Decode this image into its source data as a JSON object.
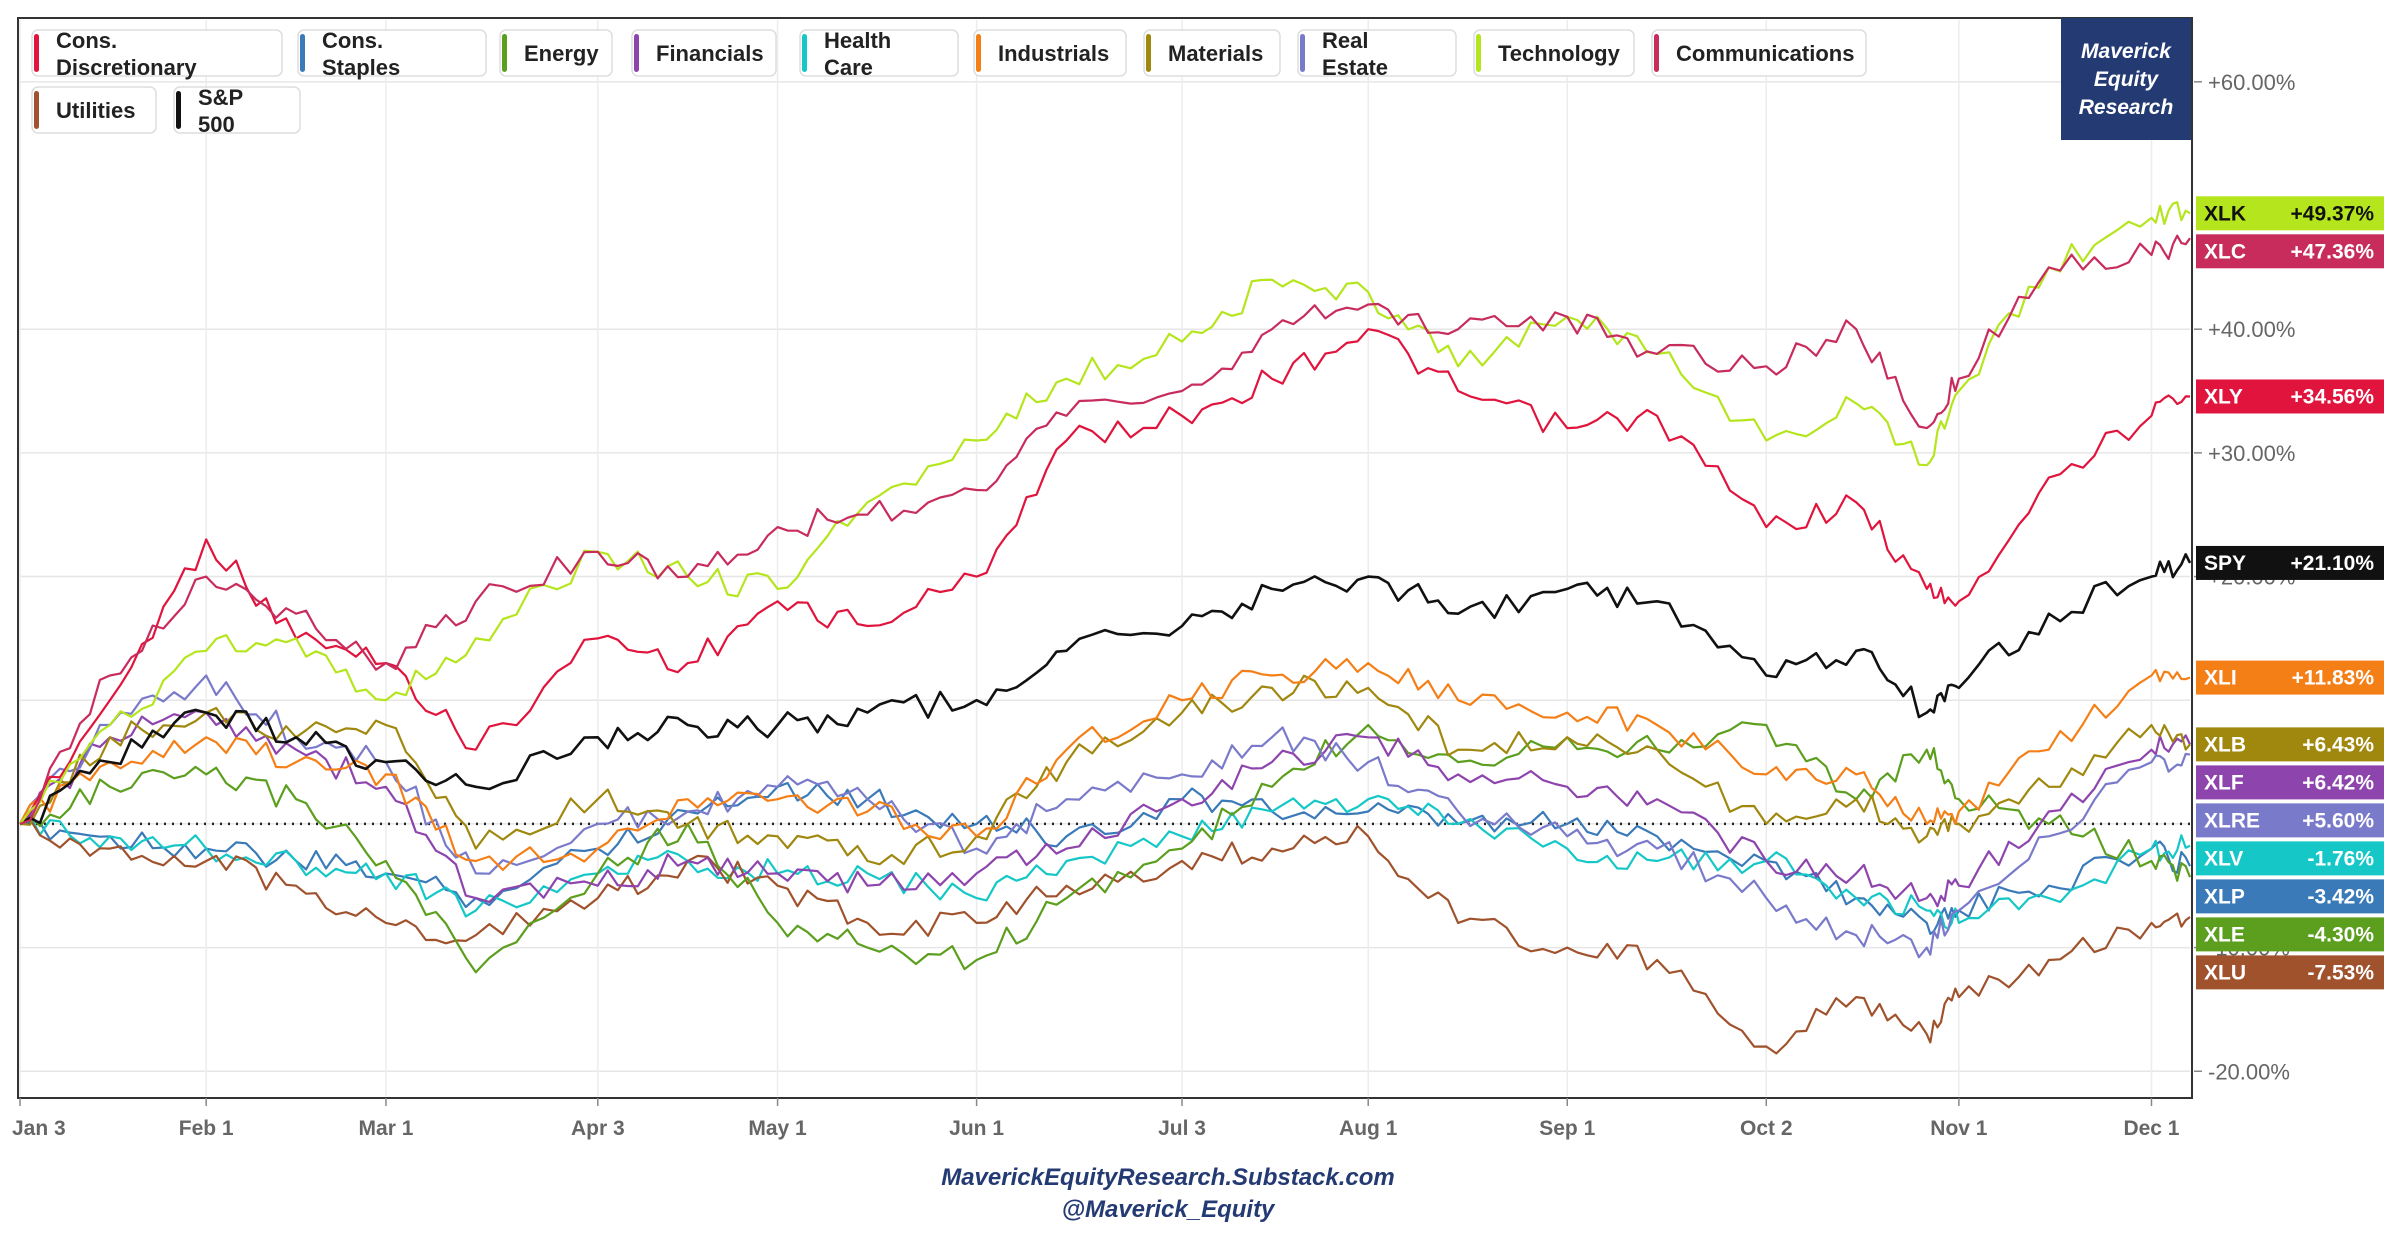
{
  "chart_data": {
    "type": "line",
    "y_unit": "%",
    "ylim": [
      -22,
      65
    ],
    "y_ticks": [
      {
        "value": 60,
        "label": "+60.00%"
      },
      {
        "value": 40,
        "label": "+40.00%"
      },
      {
        "value": 30,
        "label": "+30.00%"
      },
      {
        "value": 20,
        "label": "+20.00%"
      },
      {
        "value": -10,
        "label": "-10.00%"
      },
      {
        "value": -20,
        "label": "-20.00%"
      }
    ],
    "x_ticks": [
      {
        "date": "2023-01-03",
        "label": "Jan 3"
      },
      {
        "date": "2023-02-01",
        "label": "Feb 1"
      },
      {
        "date": "2023-03-01",
        "label": "Mar 1"
      },
      {
        "date": "2023-04-03",
        "label": "Apr 3"
      },
      {
        "date": "2023-05-01",
        "label": "May 1"
      },
      {
        "date": "2023-06-01",
        "label": "Jun 1"
      },
      {
        "date": "2023-07-03",
        "label": "Jul 3"
      },
      {
        "date": "2023-08-01",
        "label": "Aug 1"
      },
      {
        "date": "2023-09-01",
        "label": "Sep 1"
      },
      {
        "date": "2023-10-02",
        "label": "Oct 2"
      },
      {
        "date": "2023-11-01",
        "label": "Nov 1"
      },
      {
        "date": "2023-12-01",
        "label": "Dec 1"
      }
    ],
    "x_range": [
      "2023-01-03",
      "2023-12-07"
    ],
    "grid": true,
    "zero_line": "dotted",
    "legend_position": "top-left",
    "x": [
      "2023-01-03",
      "2023-01-17",
      "2023-02-01",
      "2023-02-15",
      "2023-03-01",
      "2023-03-15",
      "2023-04-03",
      "2023-04-17",
      "2023-05-01",
      "2023-05-15",
      "2023-06-01",
      "2023-06-15",
      "2023-07-03",
      "2023-07-17",
      "2023-08-01",
      "2023-08-15",
      "2023-09-01",
      "2023-09-15",
      "2023-10-02",
      "2023-10-16",
      "2023-10-27",
      "2023-11-01",
      "2023-11-15",
      "2023-12-01",
      "2023-12-07"
    ],
    "series": [
      {
        "name": "Cons. Discretionary",
        "ticker": "XLY",
        "end_label": "+34.56%",
        "color": "#e0143c",
        "values": [
          0,
          10,
          23,
          15,
          13,
          6,
          15,
          13,
          18,
          16,
          20,
          31,
          33,
          36,
          40,
          35,
          32,
          33,
          24,
          26,
          19,
          18,
          28,
          33,
          34.56
        ]
      },
      {
        "name": "Cons. Staples",
        "ticker": "XLP",
        "end_label": "-3.42%",
        "color": "#3a7ab8",
        "values": [
          0,
          -1,
          -2,
          -3,
          -4,
          -6,
          -2,
          1,
          3,
          2,
          0,
          -1,
          2,
          1,
          1,
          0,
          0,
          -1,
          -3,
          -6,
          -8,
          -7,
          -5,
          -2,
          -3.42
        ]
      },
      {
        "name": "Energy",
        "ticker": "XLE",
        "end_label": "-4.30%",
        "color": "#5c9e1e",
        "values": [
          0,
          3,
          4,
          2,
          -3,
          -12,
          -4,
          0,
          -8,
          -10,
          -11,
          -6,
          -2,
          3,
          8,
          5,
          7,
          6,
          8,
          2,
          6,
          2,
          0,
          -3,
          -4.3
        ]
      },
      {
        "name": "Financials",
        "ticker": "XLF",
        "end_label": "+6.42%",
        "color": "#8e44ad",
        "values": [
          0,
          7,
          9,
          6,
          3,
          -6,
          -5,
          -3,
          -4,
          -5,
          -4,
          -2,
          2,
          5,
          7,
          4,
          3,
          2,
          -3,
          -4,
          -6,
          -5,
          1,
          6,
          6.42
        ]
      },
      {
        "name": "Health Care",
        "ticker": "XLV",
        "end_label": "-1.76%",
        "color": "#16c7c7",
        "values": [
          0,
          -1,
          -2,
          -3,
          -4,
          -7,
          -4,
          -3,
          -4,
          -4,
          -6,
          -3,
          -1,
          1,
          2,
          0,
          -2,
          -3,
          -3,
          -6,
          -7,
          -8,
          -6,
          -2,
          -1.76
        ]
      },
      {
        "name": "Industrials",
        "ticker": "XLI",
        "end_label": "+11.83%",
        "color": "#f57f17",
        "values": [
          0,
          5,
          7,
          5,
          4,
          -3,
          -2,
          2,
          2,
          1,
          -1,
          6,
          10,
          12,
          13,
          10,
          9,
          8,
          4,
          4,
          0,
          1,
          6,
          12,
          11.83
        ]
      },
      {
        "name": "Materials",
        "ticker": "XLB",
        "end_label": "+6.43%",
        "color": "#a0880f",
        "values": [
          0,
          7,
          9,
          7,
          8,
          -2,
          2,
          0,
          -1,
          -3,
          -1,
          5,
          9,
          11,
          11,
          6,
          7,
          6,
          0,
          2,
          -1,
          0,
          3,
          8,
          6.43
        ]
      },
      {
        "name": "Real Estate",
        "ticker": "XLRE",
        "end_label": "+5.60%",
        "color": "#7a7acb",
        "values": [
          0,
          8,
          12,
          7,
          5,
          -4,
          0,
          1,
          3,
          2,
          -2,
          2,
          4,
          7,
          5,
          1,
          -1,
          -2,
          -6,
          -9,
          -10,
          -7,
          -1,
          5,
          5.6
        ]
      },
      {
        "name": "Technology",
        "ticker": "XLK",
        "end_label": "+49.37%",
        "color": "#b5e51d",
        "values": [
          0,
          8,
          14,
          15,
          10,
          15,
          22,
          20,
          19,
          26,
          31,
          36,
          39,
          44,
          43,
          37,
          41,
          38,
          31,
          34,
          29,
          35,
          45,
          49,
          49.37
        ]
      },
      {
        "name": "Communications",
        "ticker": "XLC",
        "end_label": "+47.36%",
        "color": "#c72c5c",
        "values": [
          0,
          12,
          20,
          17,
          13,
          18,
          22,
          20,
          24,
          25,
          27,
          33,
          35,
          40,
          42,
          40,
          41,
          38,
          37,
          40,
          32,
          36,
          45,
          46,
          47.36
        ]
      },
      {
        "name": "Utilities",
        "ticker": "XLU",
        "end_label": "-7.53%",
        "color": "#a0522d",
        "values": [
          0,
          -2,
          -3,
          -5,
          -8,
          -9,
          -6,
          -3,
          -5,
          -8,
          -8,
          -5,
          -3,
          -2,
          -1,
          -8,
          -10,
          -11,
          -18,
          -14,
          -17,
          -14,
          -11,
          -8,
          -7.53
        ]
      },
      {
        "name": "S&P 500",
        "ticker": "SPY",
        "end_label": "+21.10%",
        "color": "#111111",
        "values": [
          0,
          5,
          9,
          7,
          5,
          3,
          7,
          8,
          8,
          9,
          10,
          14,
          16,
          19,
          20,
          17,
          19,
          18,
          12,
          14,
          9,
          11,
          17,
          20,
          21.1
        ]
      }
    ]
  },
  "legend_labels": [
    "Cons. Discretionary",
    "Cons. Staples",
    "Energy",
    "Financials",
    "Health Care",
    "Industrials",
    "Materials",
    "Real Estate",
    "Technology",
    "Communications",
    "Utilities",
    "S&P 500"
  ],
  "brand": {
    "line1": "Maverick",
    "line2": "Equity",
    "line3": "Research",
    "color": "#243a73"
  },
  "footer": {
    "site": "MaverickEquityResearch.Substack.com",
    "handle": "@Maverick_Equity"
  }
}
